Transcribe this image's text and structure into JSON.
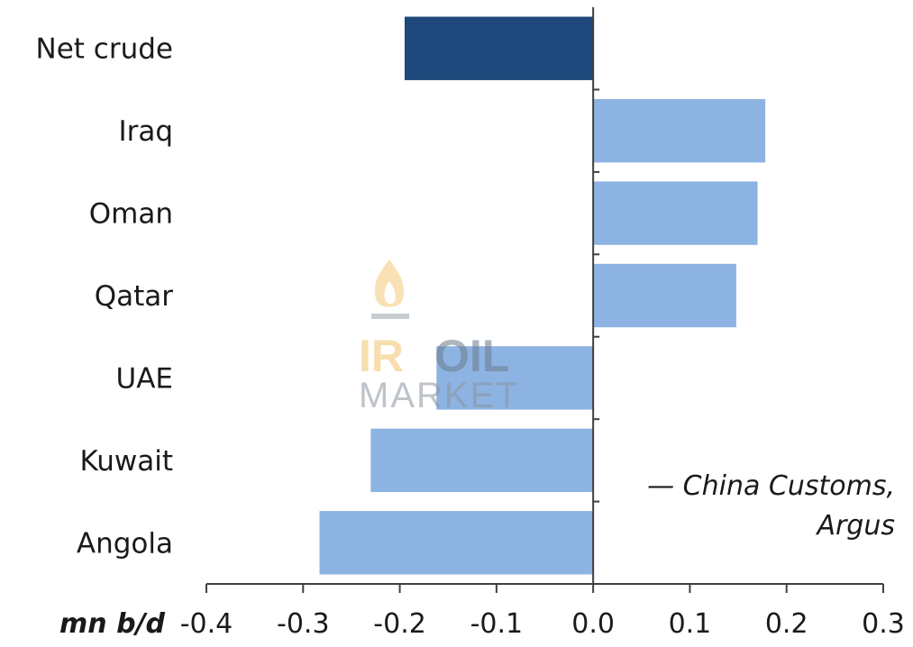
{
  "chart_data": {
    "type": "bar",
    "orientation": "horizontal",
    "categories": [
      "Net crude",
      "Iraq",
      "Oman",
      "Qatar",
      "UAE",
      "Kuwait",
      "Angola"
    ],
    "values": [
      -0.195,
      0.178,
      0.17,
      0.148,
      -0.162,
      -0.23,
      -0.283
    ],
    "xlim": [
      -0.4,
      0.3
    ],
    "xticks": [
      -0.4,
      -0.3,
      -0.2,
      -0.1,
      0.0,
      0.1,
      0.2,
      0.3
    ],
    "xtick_labels": [
      "-0.4",
      "-0.3",
      "-0.2",
      "-0.1",
      "0.0",
      "0.1",
      "0.2",
      "0.3"
    ],
    "unit_label": "mn b/d",
    "source_lines": [
      "— China Customs,",
      "Argus"
    ],
    "grid": false,
    "legend": "none",
    "colors": {
      "highlight": "#1f497d",
      "bar": "#8db3e2",
      "axis": "#404040"
    },
    "highlight_categories": [
      "Net crude"
    ]
  },
  "watermark": {
    "line1_a": "IR",
    "line1_b": "OIL",
    "line2": "MARKET",
    "icon": "flame-icon"
  }
}
